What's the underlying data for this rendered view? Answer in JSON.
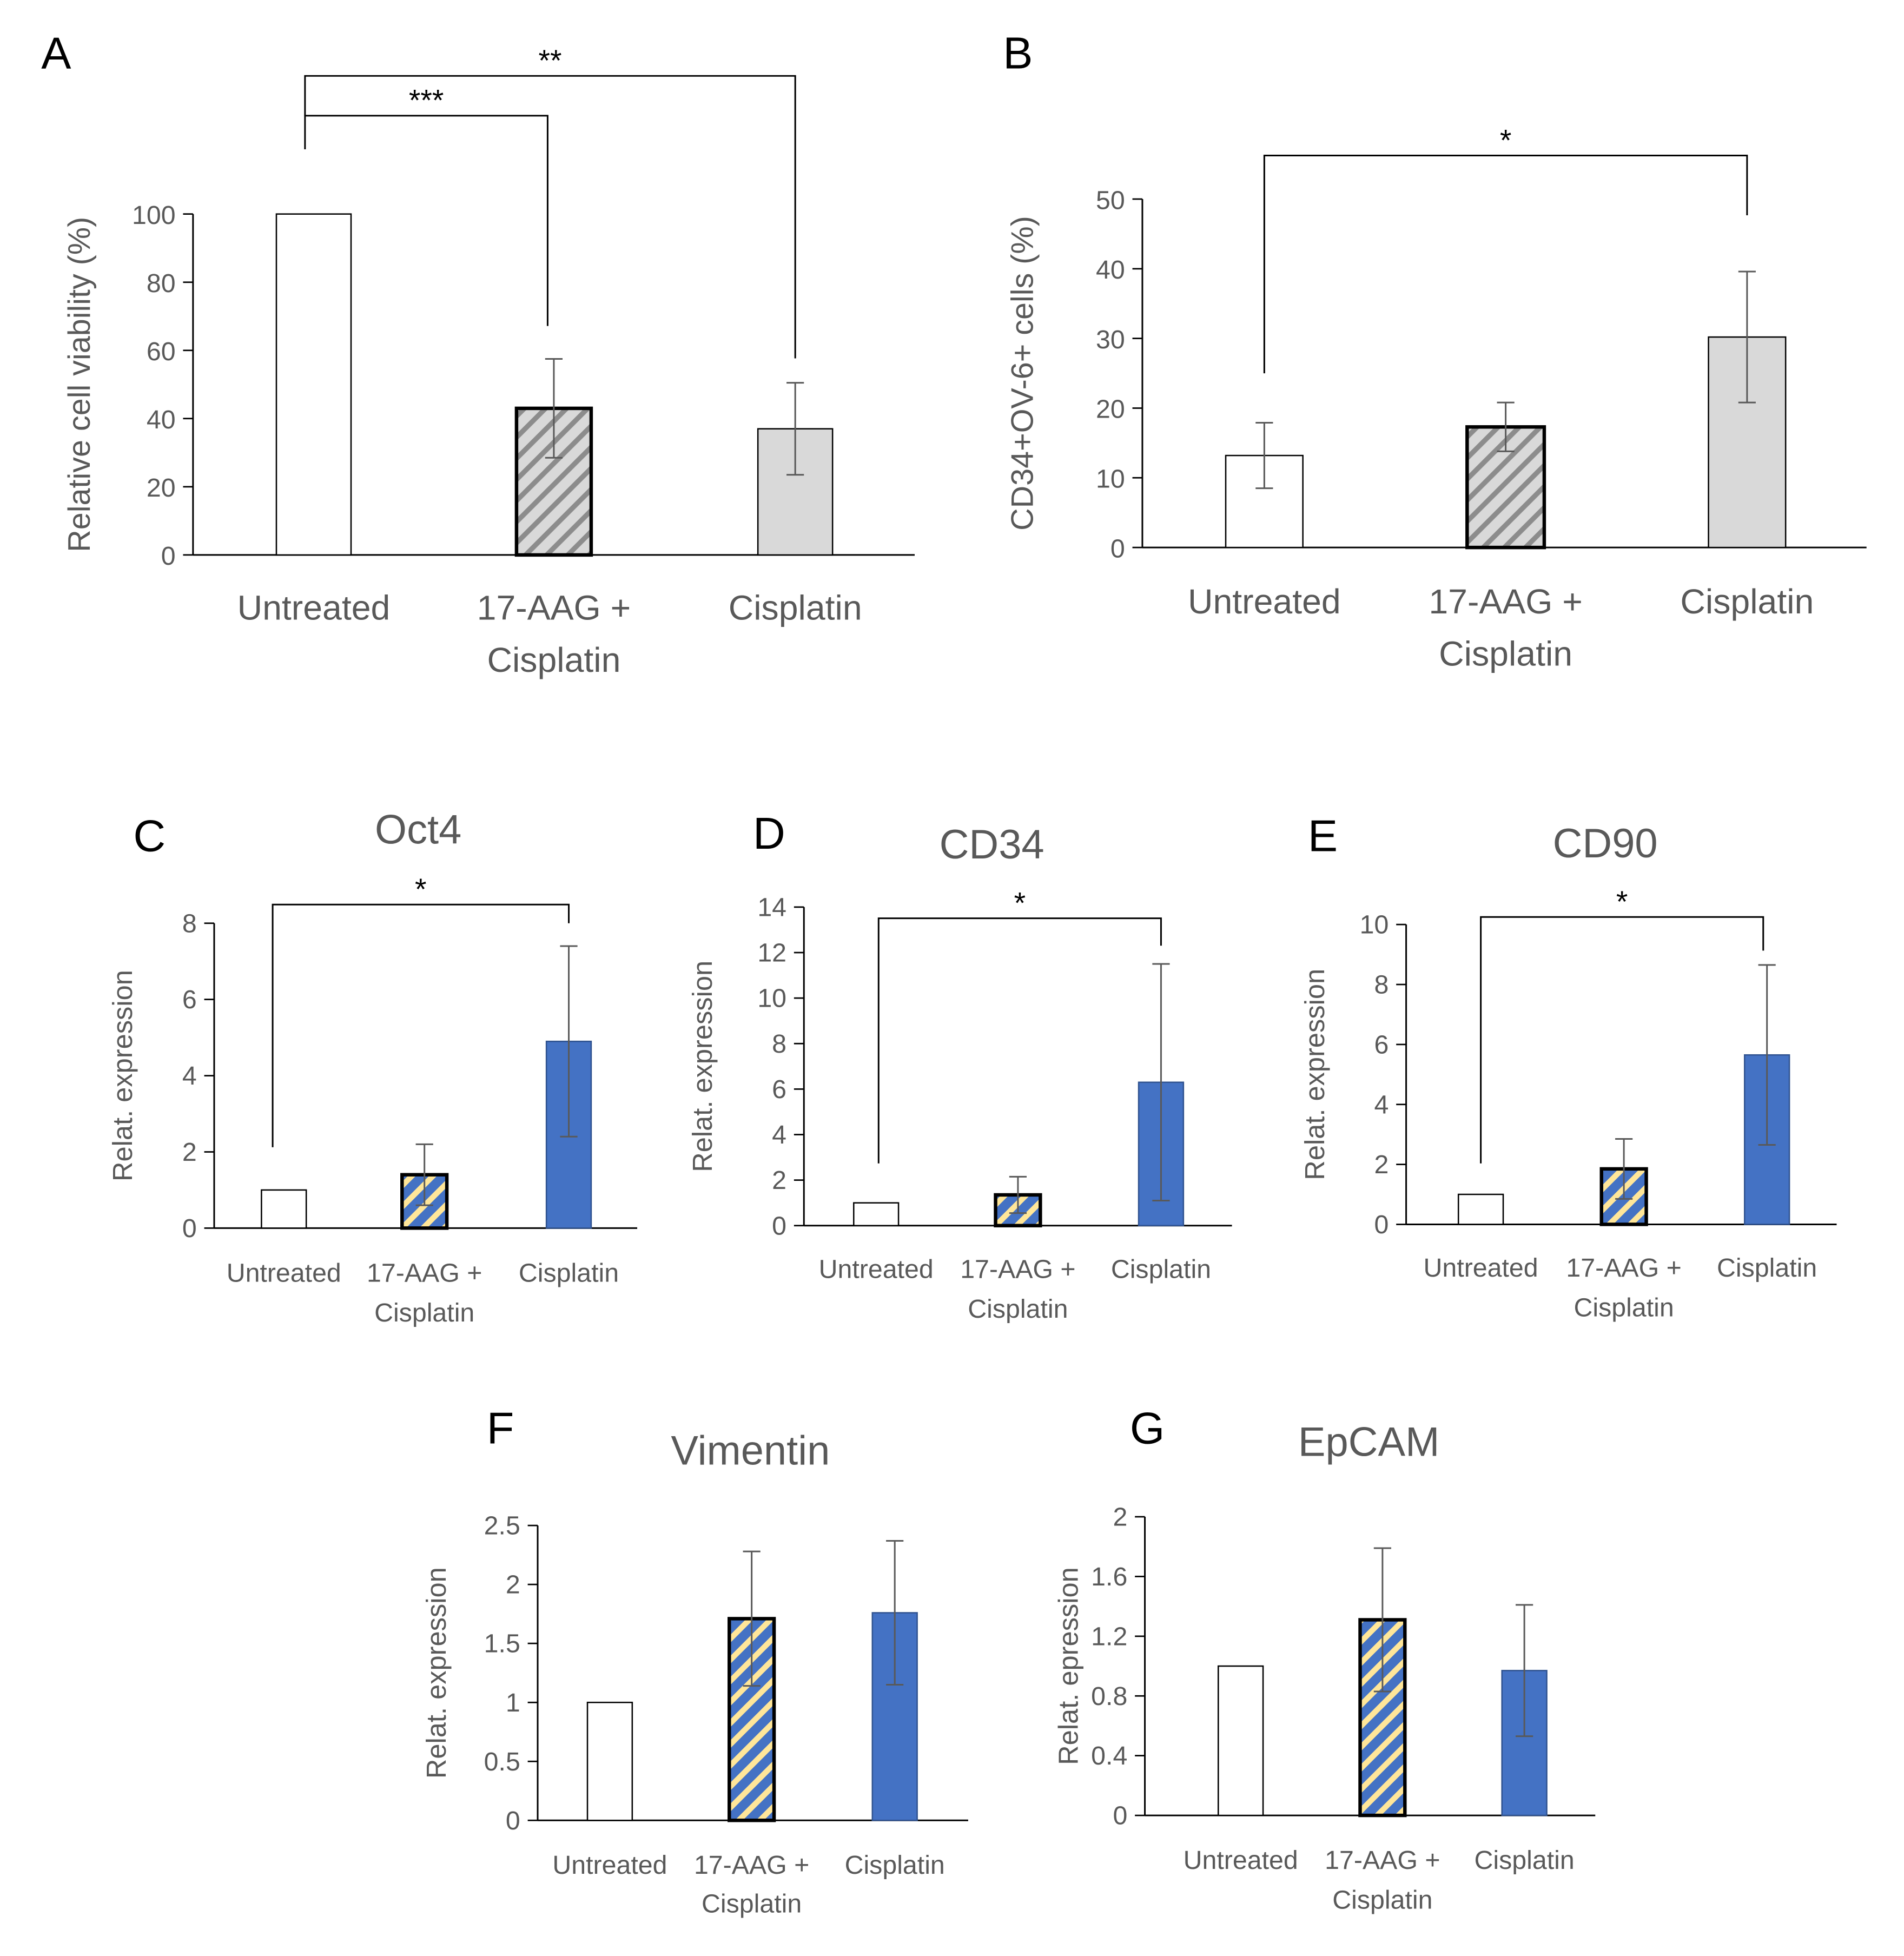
{
  "colors": {
    "blue": "#4472c4",
    "yellow": "#ffe699",
    "light_gray": "#d9d9d9",
    "hatch_gray": "#8c8c8c",
    "axis": "#000000",
    "text": "#595959",
    "error_bar": "#595959"
  },
  "chart_data": [
    {
      "panel": "A",
      "type": "bar",
      "title": "",
      "ylabel": "Relative cell viability (%)",
      "xlabel": "",
      "categories": [
        [
          "Untreated"
        ],
        [
          "17-AAG +",
          "Cisplatin"
        ],
        [
          "Cisplatin"
        ]
      ],
      "values": [
        100,
        43,
        37
      ],
      "errors": [
        0,
        14.5,
        13.5
      ],
      "ylim": [
        0,
        100
      ],
      "yticks": [
        "0",
        "20",
        "40",
        "60",
        "80",
        "100"
      ],
      "styles": [
        "white",
        "gray-hatch",
        "light-gray"
      ],
      "significance": [
        {
          "from": 0,
          "to": 1,
          "label": "***"
        },
        {
          "from": 0,
          "to": 2,
          "label": "**"
        }
      ]
    },
    {
      "panel": "B",
      "type": "bar",
      "title": "",
      "ylabel": "CD34+OV-6+ cells (%)",
      "xlabel": "",
      "categories": [
        [
          "Untreated"
        ],
        [
          "17-AAG +",
          "Cisplatin"
        ],
        [
          "Cisplatin"
        ]
      ],
      "values": [
        13.2,
        17.3,
        30.2
      ],
      "errors": [
        4.7,
        3.5,
        9.4
      ],
      "ylim": [
        0,
        50
      ],
      "yticks": [
        "0",
        "10",
        "20",
        "30",
        "40",
        "50"
      ],
      "styles": [
        "white",
        "gray-hatch",
        "light-gray"
      ],
      "significance": [
        {
          "from": 0,
          "to": 2,
          "label": "*"
        }
      ]
    },
    {
      "panel": "C",
      "type": "bar",
      "title": "Oct4",
      "ylabel": "Relat. expression",
      "xlabel": "",
      "categories": [
        [
          "Untreated"
        ],
        [
          "17-AAG +",
          "Cisplatin"
        ],
        [
          "Cisplatin"
        ]
      ],
      "values": [
        1.0,
        1.4,
        4.9
      ],
      "errors": [
        0,
        0.8,
        2.5
      ],
      "ylim": [
        0,
        8
      ],
      "yticks": [
        "0",
        "2",
        "4",
        "6",
        "8"
      ],
      "styles": [
        "white",
        "blue-hatch",
        "blue"
      ],
      "significance": [
        {
          "from": 0,
          "to": 2,
          "label": "*"
        }
      ]
    },
    {
      "panel": "D",
      "type": "bar",
      "title": "CD34",
      "ylabel": "Relat. expression",
      "xlabel": "",
      "categories": [
        [
          "Untreated"
        ],
        [
          "17-AAG +",
          "Cisplatin"
        ],
        [
          "Cisplatin"
        ]
      ],
      "values": [
        1.0,
        1.35,
        6.3
      ],
      "errors": [
        0,
        0.8,
        5.2
      ],
      "ylim": [
        0,
        14
      ],
      "yticks": [
        "0",
        "2",
        "4",
        "6",
        "8",
        "10",
        "12",
        "14"
      ],
      "styles": [
        "white",
        "blue-hatch",
        "blue"
      ],
      "significance": [
        {
          "from": 0,
          "to": 2,
          "label": "*"
        }
      ]
    },
    {
      "panel": "E",
      "type": "bar",
      "title": "CD90",
      "ylabel": "Relat. expression",
      "xlabel": "",
      "categories": [
        [
          "Untreated"
        ],
        [
          "17-AAG +",
          "Cisplatin"
        ],
        [
          "Cisplatin"
        ]
      ],
      "values": [
        1.0,
        1.85,
        5.65
      ],
      "errors": [
        0,
        1.0,
        3.0
      ],
      "ylim": [
        0,
        10
      ],
      "yticks": [
        "0",
        "2",
        "4",
        "6",
        "8",
        "10"
      ],
      "styles": [
        "white",
        "blue-hatch",
        "blue"
      ],
      "significance": [
        {
          "from": 0,
          "to": 2,
          "label": "*"
        }
      ]
    },
    {
      "panel": "F",
      "type": "bar",
      "title": "Vimentin",
      "ylabel": "Relat. expression",
      "xlabel": "",
      "categories": [
        [
          "Untreated"
        ],
        [
          "17-AAG +",
          "Cisplatin"
        ],
        [
          "Cisplatin"
        ]
      ],
      "values": [
        1.0,
        1.71,
        1.76
      ],
      "errors": [
        0,
        0.57,
        0.61
      ],
      "ylim": [
        0,
        2.5
      ],
      "yticks": [
        "0",
        "0.5",
        "1",
        "1.5",
        "2",
        "2.5"
      ],
      "styles": [
        "white",
        "blue-hatch",
        "blue"
      ],
      "significance": []
    },
    {
      "panel": "G",
      "type": "bar",
      "title": "EpCAM",
      "ylabel": "Relat. epression",
      "xlabel": "",
      "categories": [
        [
          "Untreated"
        ],
        [
          "17-AAG +",
          "Cisplatin"
        ],
        [
          "Cisplatin"
        ]
      ],
      "values": [
        1.0,
        1.31,
        0.97
      ],
      "errors": [
        0,
        0.48,
        0.44
      ],
      "ylim": [
        0,
        2
      ],
      "yticks": [
        "0",
        "0.4",
        "0.8",
        "1.2",
        "1.6",
        "2"
      ],
      "styles": [
        "white",
        "blue-hatch",
        "blue"
      ],
      "significance": []
    }
  ]
}
